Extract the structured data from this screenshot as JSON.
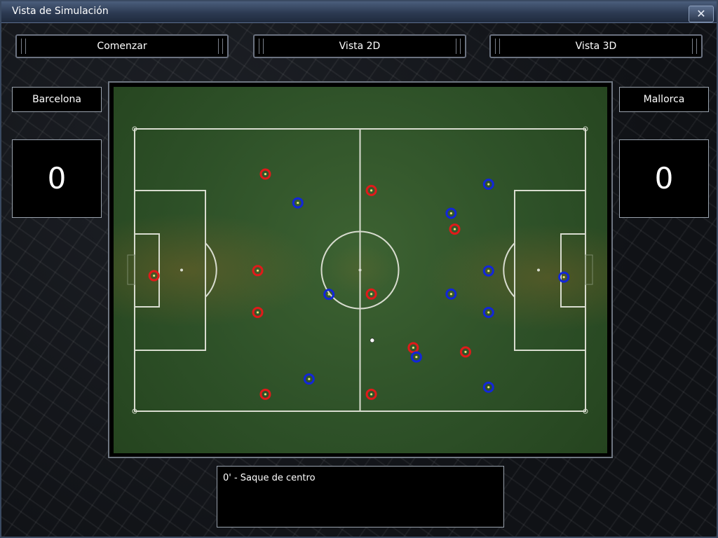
{
  "window": {
    "title": "Vista de Simulación",
    "close_glyph": "✕"
  },
  "toolbar": {
    "start_label": "Comenzar",
    "view2d_label": "Vista 2D",
    "view3d_label": "Vista 3D"
  },
  "home": {
    "name": "Barcelona",
    "score": "0",
    "color": "#e01a1a"
  },
  "away": {
    "name": "Mallorca",
    "score": "0",
    "color": "#1226d8"
  },
  "commentary": {
    "text": "0' - Saque de centro"
  },
  "pitch": {
    "line_color": "#d8dccf",
    "ball": {
      "x": 52.7,
      "y": 74.9
    },
    "home_players": [
      {
        "x": 4.3,
        "y": 52.0
      },
      {
        "x": 29.0,
        "y": 16.0
      },
      {
        "x": 27.3,
        "y": 50.2
      },
      {
        "x": 27.3,
        "y": 65.0
      },
      {
        "x": 29.0,
        "y": 94.0
      },
      {
        "x": 52.5,
        "y": 21.8
      },
      {
        "x": 52.5,
        "y": 58.5
      },
      {
        "x": 52.5,
        "y": 94.0
      },
      {
        "x": 61.8,
        "y": 77.5
      },
      {
        "x": 71.0,
        "y": 35.5
      },
      {
        "x": 73.4,
        "y": 79.0
      }
    ],
    "away_players": [
      {
        "x": 36.2,
        "y": 26.2
      },
      {
        "x": 43.1,
        "y": 58.6
      },
      {
        "x": 38.7,
        "y": 88.6
      },
      {
        "x": 62.5,
        "y": 80.8
      },
      {
        "x": 70.2,
        "y": 29.9
      },
      {
        "x": 70.2,
        "y": 58.5
      },
      {
        "x": 78.5,
        "y": 19.6
      },
      {
        "x": 78.5,
        "y": 50.3
      },
      {
        "x": 78.5,
        "y": 65.0
      },
      {
        "x": 78.5,
        "y": 91.5
      },
      {
        "x": 95.2,
        "y": 52.5
      }
    ]
  }
}
